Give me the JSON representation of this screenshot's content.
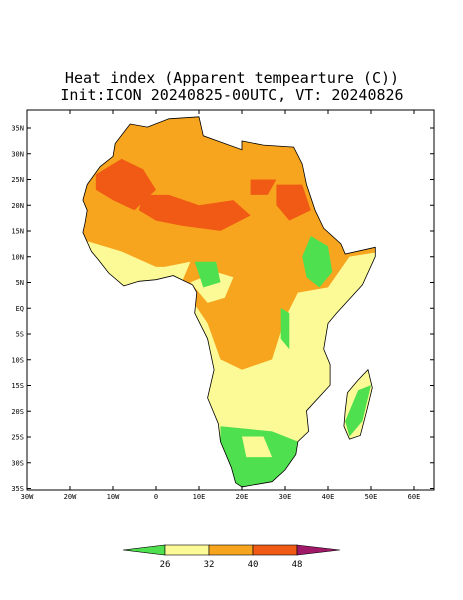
{
  "title": "Heat index (Apparent tempearture (C))",
  "subtitle": "Init:ICON 20240825-00UTC, VT: 20240826",
  "lat_labels": [
    "35N",
    "30N",
    "25N",
    "20N",
    "15N",
    "10N",
    "5N",
    "EQ",
    "5S",
    "10S",
    "15S",
    "20S",
    "25S",
    "30S",
    "35S"
  ],
  "lon_labels": [
    "30W",
    "20W",
    "10W",
    "0",
    "10E",
    "20E",
    "30E",
    "40E",
    "50E",
    "60E"
  ],
  "colorbar": {
    "levels": [
      26,
      32,
      40,
      48
    ],
    "colors": [
      "#4ee04e",
      "#fcfa96",
      "#f7a51e",
      "#f05a14",
      "#a01868"
    ]
  }
}
